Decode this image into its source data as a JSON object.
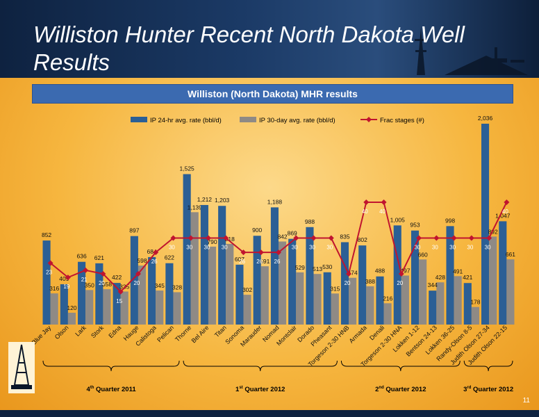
{
  "slide": {
    "title": "Williston Hunter Recent North Dakota Well Results",
    "page_number": "11"
  },
  "colors": {
    "ip24": "#2b5f95",
    "ip30": "#8f8a85",
    "frac": "#c0142f",
    "banner": "#3b6ab0"
  },
  "chart_data": {
    "type": "bar",
    "title": "Williston (North Dakota) MHR results",
    "categories": [
      "Blue Jay",
      "Olson",
      "Lark",
      "Stork",
      "Edna",
      "Hauge",
      "Calistoga",
      "Pelican",
      "Thorne",
      "Bel Aire",
      "Titan",
      "Sonoma",
      "Marauder",
      "Nomad",
      "Montclair",
      "Dorado",
      "Pheasant",
      "Torgeson 2-30 HNB",
      "Armada",
      "Denali",
      "Torgeson 2-30 HNA",
      "Lokken 1-12",
      "Bentson 24-13",
      "Lokken 36-25",
      "Randy-Olson 8-5",
      "Judith Olson 27-34",
      "Judith Olson 22-15"
    ],
    "series": [
      {
        "name": "IP 24-hr avg. rate (bbl/d)",
        "kind": "bar",
        "values": [
          852,
          409,
          636,
          621,
          422,
          897,
          684,
          622,
          1525,
          1212,
          1203,
          607,
          900,
          1188,
          869,
          988,
          530,
          835,
          802,
          488,
          1005,
          953,
          344,
          998,
          421,
          2036,
          1047
        ],
        "labels": [
          "852",
          "409",
          "636",
          "621",
          "422",
          "897",
          "684",
          "622",
          "1,525",
          "1,212",
          "1,203",
          "607",
          "900",
          "1,188",
          "869",
          "988",
          "530",
          "835",
          "802",
          "488",
          "1,005",
          "953",
          "344",
          "998",
          "421",
          "2,036",
          "1,047"
        ]
      },
      {
        "name": "IP 30-day avg. rate (bbl/d)",
        "kind": "bar",
        "values": [
          316,
          120,
          350,
          358,
          335,
          598,
          345,
          328,
          1139,
          790,
          818,
          302,
          591,
          842,
          529,
          513,
          315,
          474,
          388,
          216,
          497,
          660,
          428,
          491,
          178,
          892,
          661
        ],
        "labels": [
          "316",
          "120",
          "350",
          "358",
          "335",
          "598",
          "345",
          "328",
          "1,139",
          "790",
          "818",
          "302",
          "591",
          "842",
          "529",
          "513",
          "315",
          "474",
          "388",
          "216",
          "497",
          "660",
          "428",
          "491",
          "178",
          "892",
          "661"
        ]
      },
      {
        "name": "Frac stages (#)",
        "kind": "line",
        "values": [
          23,
          19,
          21,
          20,
          15,
          20,
          26,
          30,
          30,
          30,
          30,
          26,
          26,
          26,
          30,
          30,
          30,
          20,
          40,
          40,
          20,
          30,
          30,
          30,
          30,
          30,
          40
        ]
      }
    ],
    "groups": [
      {
        "label": "4th Quarter 2011",
        "ordinal": "4",
        "sup": "th",
        "rest": " Quarter 2011",
        "start": 0,
        "end": 7
      },
      {
        "label": "1st Quarter 2012",
        "ordinal": "1",
        "sup": "st",
        "rest": " Quarter 2012",
        "start": 8,
        "end": 16
      },
      {
        "label": "2nd Quarter 2012",
        "ordinal": "2",
        "sup": "nd",
        "rest": " Quarter 2012",
        "start": 17,
        "end": 23
      },
      {
        "label": "3rd Quarter 2012",
        "ordinal": "3",
        "sup": "rd",
        "rest": " Quarter 2012",
        "start": 24,
        "end": 26
      }
    ],
    "legend_position": "top"
  }
}
